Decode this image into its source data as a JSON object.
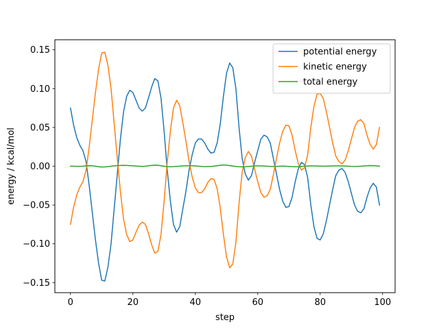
{
  "chart_data": {
    "type": "line",
    "title": "",
    "xlabel": "step",
    "ylabel": "energy / kcal/mol",
    "xlim": [
      -5,
      104
    ],
    "ylim": [
      -0.163,
      0.163
    ],
    "xticks": [
      0,
      20,
      40,
      60,
      80,
      100
    ],
    "yticks": [
      -0.15,
      -0.1,
      -0.05,
      0.0,
      0.05,
      0.1,
      0.15
    ],
    "xtick_labels": [
      "0",
      "20",
      "40",
      "60",
      "80",
      "100"
    ],
    "ytick_labels": [
      "−0.15",
      "−0.10",
      "−0.05",
      "0.00",
      "0.05",
      "0.10",
      "0.15"
    ],
    "grid": false,
    "legend_position": "top-right",
    "series": [
      {
        "name": "potential energy",
        "color": "#1f77b4",
        "x": [
          0,
          1,
          2,
          3,
          4,
          5,
          6,
          7,
          8,
          9,
          10,
          11,
          12,
          13,
          14,
          15,
          16,
          17,
          18,
          19,
          20,
          21,
          22,
          23,
          24,
          25,
          26,
          27,
          28,
          29,
          30,
          31,
          32,
          33,
          34,
          35,
          36,
          37,
          38,
          39,
          40,
          41,
          42,
          43,
          44,
          45,
          46,
          47,
          48,
          49,
          50,
          51,
          52,
          53,
          54,
          55,
          56,
          57,
          58,
          59,
          60,
          61,
          62,
          63,
          64,
          65,
          66,
          67,
          68,
          69,
          70,
          71,
          72,
          73,
          74,
          75,
          76,
          77,
          78,
          79,
          80,
          81,
          82,
          83,
          84,
          85,
          86,
          87,
          88,
          89,
          90,
          91,
          92,
          93,
          94,
          95,
          96,
          97,
          98,
          99
        ],
        "values": [
          0.075,
          0.053,
          0.037,
          0.027,
          0.02,
          0.006,
          -0.025,
          -0.06,
          -0.095,
          -0.125,
          -0.147,
          -0.148,
          -0.13,
          -0.1,
          -0.055,
          -0.01,
          0.035,
          0.07,
          0.09,
          0.098,
          0.095,
          0.085,
          0.075,
          0.071,
          0.075,
          0.088,
          0.102,
          0.113,
          0.11,
          0.088,
          0.045,
          -0.005,
          -0.045,
          -0.075,
          -0.085,
          -0.078,
          -0.055,
          -0.032,
          -0.005,
          0.015,
          0.03,
          0.035,
          0.035,
          0.03,
          0.022,
          0.017,
          0.018,
          0.03,
          0.055,
          0.09,
          0.12,
          0.133,
          0.127,
          0.1,
          0.05,
          0.01,
          -0.01,
          -0.018,
          -0.012,
          0.005,
          0.02,
          0.035,
          0.04,
          0.038,
          0.03,
          0.01,
          -0.01,
          -0.03,
          -0.045,
          -0.053,
          -0.052,
          -0.04,
          -0.02,
          -0.003,
          0.005,
          0.002,
          -0.015,
          -0.05,
          -0.078,
          -0.093,
          -0.095,
          -0.087,
          -0.07,
          -0.05,
          -0.03,
          -0.012,
          -0.005,
          -0.003,
          -0.008,
          -0.02,
          -0.035,
          -0.05,
          -0.058,
          -0.06,
          -0.055,
          -0.04,
          -0.028,
          -0.022,
          -0.027,
          -0.05
        ]
      },
      {
        "name": "kinetic energy",
        "color": "#ff7f0e",
        "x": [
          0,
          1,
          2,
          3,
          4,
          5,
          6,
          7,
          8,
          9,
          10,
          11,
          12,
          13,
          14,
          15,
          16,
          17,
          18,
          19,
          20,
          21,
          22,
          23,
          24,
          25,
          26,
          27,
          28,
          29,
          30,
          31,
          32,
          33,
          34,
          35,
          36,
          37,
          38,
          39,
          40,
          41,
          42,
          43,
          44,
          45,
          46,
          47,
          48,
          49,
          50,
          51,
          52,
          53,
          54,
          55,
          56,
          57,
          58,
          59,
          60,
          61,
          62,
          63,
          64,
          65,
          66,
          67,
          68,
          69,
          70,
          71,
          72,
          73,
          74,
          75,
          76,
          77,
          78,
          79,
          80,
          81,
          82,
          83,
          84,
          85,
          86,
          87,
          88,
          89,
          90,
          91,
          92,
          93,
          94,
          95,
          96,
          97,
          98,
          99
        ],
        "values": [
          -0.075,
          -0.053,
          -0.037,
          -0.027,
          -0.02,
          -0.005,
          0.025,
          0.06,
          0.095,
          0.125,
          0.146,
          0.147,
          0.13,
          0.1,
          0.055,
          0.01,
          -0.033,
          -0.068,
          -0.088,
          -0.097,
          -0.095,
          -0.085,
          -0.076,
          -0.072,
          -0.075,
          -0.087,
          -0.101,
          -0.112,
          -0.11,
          -0.088,
          -0.045,
          0.005,
          0.045,
          0.075,
          0.085,
          0.078,
          0.056,
          0.032,
          0.006,
          -0.014,
          -0.028,
          -0.034,
          -0.034,
          -0.029,
          -0.021,
          -0.016,
          -0.017,
          -0.029,
          -0.054,
          -0.088,
          -0.117,
          -0.131,
          -0.126,
          -0.098,
          -0.048,
          -0.008,
          0.011,
          0.019,
          0.013,
          -0.004,
          -0.02,
          -0.034,
          -0.04,
          -0.038,
          -0.03,
          -0.011,
          0.01,
          0.03,
          0.045,
          0.053,
          0.052,
          0.04,
          0.02,
          0.003,
          -0.005,
          -0.002,
          0.015,
          0.05,
          0.077,
          0.093,
          0.094,
          0.087,
          0.07,
          0.05,
          0.03,
          0.013,
          0.006,
          0.003,
          0.008,
          0.02,
          0.035,
          0.05,
          0.058,
          0.06,
          0.055,
          0.04,
          0.028,
          0.022,
          0.028,
          0.05
        ]
      },
      {
        "name": "total energy",
        "color": "#2ca02c",
        "x": [
          0,
          1,
          2,
          3,
          4,
          5,
          6,
          7,
          8,
          9,
          10,
          11,
          12,
          13,
          14,
          15,
          16,
          17,
          18,
          19,
          20,
          21,
          22,
          23,
          24,
          25,
          26,
          27,
          28,
          29,
          30,
          31,
          32,
          33,
          34,
          35,
          36,
          37,
          38,
          39,
          40,
          41,
          42,
          43,
          44,
          45,
          46,
          47,
          48,
          49,
          50,
          51,
          52,
          53,
          54,
          55,
          56,
          57,
          58,
          59,
          60,
          61,
          62,
          63,
          64,
          65,
          66,
          67,
          68,
          69,
          70,
          71,
          72,
          73,
          74,
          75,
          76,
          77,
          78,
          79,
          80,
          81,
          82,
          83,
          84,
          85,
          86,
          87,
          88,
          89,
          90,
          91,
          92,
          93,
          94,
          95,
          96,
          97,
          98,
          99
        ],
        "values": [
          0.0,
          0.0,
          -0.0002,
          -0.0001,
          0.0,
          0.0005,
          0.0007,
          0.0006,
          0.0,
          -0.0007,
          -0.001,
          -0.0009,
          -0.0005,
          0.0,
          0.0004,
          0.0008,
          0.001,
          0.0011,
          0.001,
          0.0008,
          0.0005,
          0.0002,
          0.0,
          -0.0002,
          0.0,
          0.0006,
          0.0011,
          0.0013,
          0.0012,
          0.0007,
          0.0,
          -0.0005,
          -0.0007,
          -0.0005,
          -0.0002,
          0.0,
          0.0004,
          0.0006,
          0.0006,
          0.0005,
          0.0003,
          0.0,
          -0.0003,
          -0.0005,
          -0.0004,
          -0.0002,
          0.0001,
          0.0007,
          0.0012,
          0.0015,
          0.0013,
          0.0008,
          0.0002,
          -0.0003,
          -0.0007,
          -0.0008,
          -0.0006,
          -0.0003,
          0.0,
          0.0003,
          0.0004,
          0.0004,
          0.0002,
          0.0,
          -0.0002,
          -0.0003,
          -0.0002,
          0.0,
          0.0001,
          0.0,
          -0.0003,
          -0.0006,
          -0.0007,
          -0.0005,
          -0.0002,
          0.0,
          0.0002,
          0.0003,
          0.0003,
          0.0002,
          0.0001,
          0.0,
          0.0001,
          0.0002,
          0.0003,
          0.0004,
          0.0004,
          0.0003,
          0.0002,
          0.0,
          -0.0002,
          -0.0003,
          -0.0002,
          0.0,
          0.0003,
          0.0006,
          0.0008,
          0.0007,
          0.0004,
          0.0001
        ]
      }
    ]
  }
}
